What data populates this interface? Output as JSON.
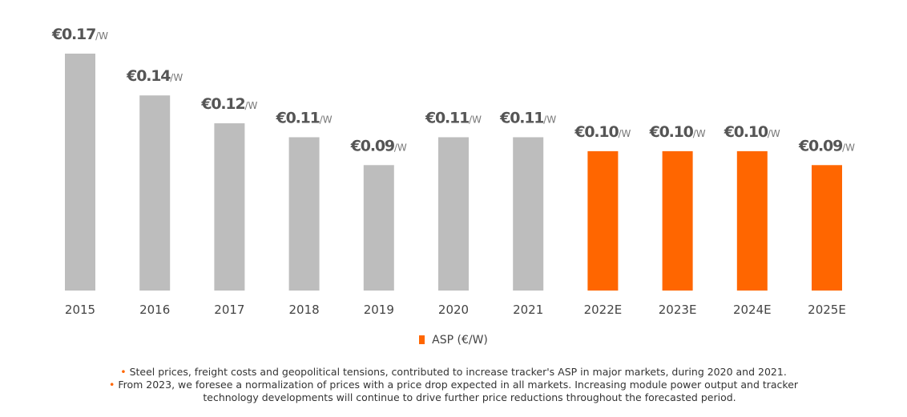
{
  "chart_data": {
    "type": "bar",
    "categories": [
      "2015",
      "2016",
      "2017",
      "2018",
      "2019",
      "2020",
      "2021",
      "2022E",
      "2023E",
      "2024E",
      "2025E"
    ],
    "series": [
      {
        "name": "ASP (€/W)",
        "values": [
          0.17,
          0.14,
          0.12,
          0.11,
          0.09,
          0.11,
          0.11,
          0.1,
          0.1,
          0.1,
          0.09
        ]
      }
    ],
    "value_labels": [
      "€0.17",
      "€0.14",
      "€0.12",
      "€0.11",
      "€0.09",
      "€0.11",
      "€0.11",
      "€0.10",
      "€0.10",
      "€0.10",
      "€0.09"
    ],
    "unit_suffix": "/W",
    "forecast_from_index": 7,
    "colors": {
      "actual": "#bdbdbd",
      "forecast": "#ff6600",
      "label": "#555555",
      "axis_label": "#444444"
    },
    "ylim": [
      0,
      0.17
    ],
    "grid": false,
    "legend_position": "bottom-center"
  },
  "legend": {
    "label": "ASP (€/W)"
  },
  "notes": {
    "line1": "Steel prices, freight costs and geopolitical tensions, contributed to increase tracker's ASP in major markets, during 2020 and 2021.",
    "line2": "From 2023, we foresee a normalization of prices with a price drop expected in all markets. Increasing module power output and tracker",
    "line3": "technology developments will continue to drive further price reductions throughout the forecasted period."
  }
}
